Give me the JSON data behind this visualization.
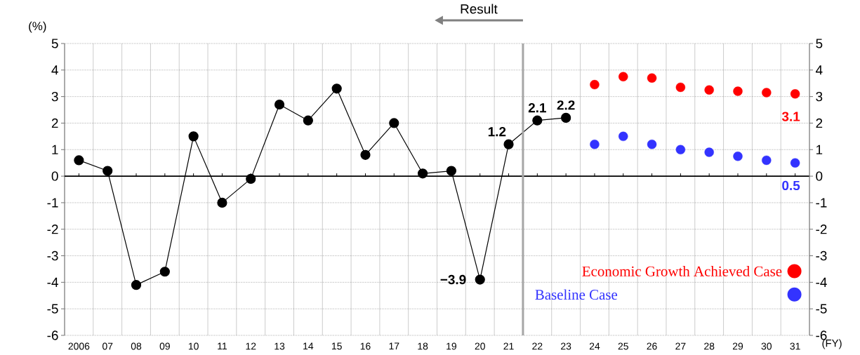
{
  "chart_data": {
    "type": "line",
    "xlabel": "(FY)",
    "ylabel": "(%)",
    "categories": [
      "2006",
      "07",
      "08",
      "09",
      "10",
      "11",
      "12",
      "13",
      "14",
      "15",
      "16",
      "17",
      "18",
      "19",
      "20",
      "21",
      "22",
      "23",
      "24",
      "25",
      "26",
      "27",
      "28",
      "29",
      "30",
      "31"
    ],
    "series": [
      {
        "color": "#000000",
        "marker": "circle",
        "line_style": "solid",
        "values": [
          0.6,
          0.2,
          -4.1,
          -3.6,
          1.5,
          -1.0,
          -0.1,
          2.7,
          2.1,
          3.3,
          0.8,
          2.0,
          0.1,
          0.2,
          -3.9,
          1.2,
          2.1,
          2.2,
          null,
          null,
          null,
          null,
          null,
          null,
          null,
          null
        ],
        "value_labels": [
          null,
          null,
          null,
          null,
          null,
          null,
          null,
          null,
          null,
          null,
          null,
          null,
          null,
          null,
          "−3.9",
          "1.2",
          "2.1",
          "2.2",
          null,
          null,
          null,
          null,
          null,
          null,
          null,
          null
        ]
      },
      {
        "type": "scatter",
        "name": "Economic Growth Achieved Case",
        "color": "#ff0000",
        "marker": "circle",
        "values": [
          null,
          null,
          null,
          null,
          null,
          null,
          null,
          null,
          null,
          null,
          null,
          null,
          null,
          null,
          null,
          null,
          null,
          null,
          3.45,
          3.75,
          3.7,
          3.35,
          3.25,
          3.2,
          3.15,
          3.1
        ],
        "value_labels": [
          null,
          null,
          null,
          null,
          null,
          null,
          null,
          null,
          null,
          null,
          null,
          null,
          null,
          null,
          null,
          null,
          null,
          null,
          null,
          null,
          null,
          null,
          null,
          null,
          null,
          "3.1"
        ]
      },
      {
        "type": "scatter",
        "name": "Baseline Case",
        "color": "#3333ff",
        "marker": "circle",
        "values": [
          null,
          null,
          null,
          null,
          null,
          null,
          null,
          null,
          null,
          null,
          null,
          null,
          null,
          null,
          null,
          null,
          null,
          null,
          1.2,
          1.5,
          1.2,
          1.0,
          0.9,
          0.75,
          0.6,
          0.5
        ],
        "value_labels": [
          null,
          null,
          null,
          null,
          null,
          null,
          null,
          null,
          null,
          null,
          null,
          null,
          null,
          null,
          null,
          null,
          null,
          null,
          null,
          null,
          null,
          null,
          null,
          null,
          null,
          "0.5"
        ]
      }
    ],
    "ylim": [
      -6,
      5
    ],
    "yticks": [
      -6,
      -5,
      -4,
      -3,
      -2,
      -1,
      0,
      1,
      2,
      3,
      4,
      5
    ],
    "y2lim": [
      -6,
      5
    ],
    "y2ticks": [
      -6,
      -5,
      -4,
      -3,
      -2,
      -1,
      0,
      1,
      2,
      3,
      4,
      5
    ],
    "grid": true,
    "legend": "bottom right",
    "annotations": [
      "Result"
    ]
  }
}
